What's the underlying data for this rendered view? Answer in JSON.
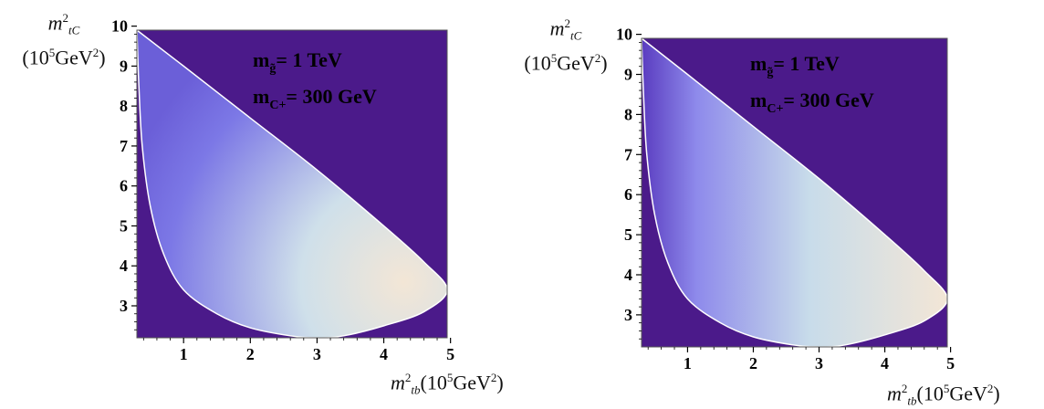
{
  "chart_data": [
    {
      "type": "density",
      "ylabel_line1": "m",
      "ylabel_sup": "2",
      "ylabel_sub": "tC",
      "ylabel_line2": "(10",
      "ylabel_line2_sup": "5",
      "ylabel_line2_end": "GeV",
      "ylabel_line2_end_sup": "2",
      "ylabel_line2_close": ")",
      "xlabel": "m",
      "xlabel_sup": "2",
      "xlabel_sub": "tb",
      "xlabel_rest": "(10",
      "xlabel_rest_sup": "5",
      "xlabel_rest_end": "GeV",
      "xlabel_rest_end_sup": "2",
      "xlabel_close": ")",
      "xlim": [
        0.3,
        4.95
      ],
      "ylim": [
        2.2,
        9.9
      ],
      "x_ticks": [
        1,
        2,
        3,
        4,
        5
      ],
      "y_ticks": [
        3,
        4,
        5,
        6,
        7,
        8,
        9,
        10
      ],
      "annotation_line1": "m",
      "annotation_line1_sub": "g̃",
      "annotation_line1_rest": "= 1 TeV",
      "annotation_line2": "m",
      "annotation_line2_sub": "C+",
      "annotation_line2_rest": "= 300 GeV",
      "gradient": "radial",
      "colors": {
        "background": "#4B1A8A",
        "low": "#7C78E6",
        "mid": "#CFE0EA",
        "high": "#F3E6D6"
      },
      "boundary": {
        "upper": [
          [
            0.3,
            9.9
          ],
          [
            1.0,
            9.0
          ],
          [
            2.0,
            7.7
          ],
          [
            3.0,
            6.4
          ],
          [
            4.0,
            5.0
          ],
          [
            4.6,
            4.1
          ],
          [
            4.95,
            3.4
          ]
        ],
        "lower": [
          [
            4.95,
            3.4
          ],
          [
            4.6,
            2.85
          ],
          [
            4.0,
            2.5
          ],
          [
            3.4,
            2.25
          ],
          [
            3.0,
            2.2
          ],
          [
            2.6,
            2.25
          ],
          [
            2.0,
            2.45
          ],
          [
            1.5,
            2.8
          ],
          [
            1.0,
            3.4
          ],
          [
            0.7,
            4.3
          ],
          [
            0.5,
            5.5
          ],
          [
            0.38,
            7.0
          ],
          [
            0.33,
            8.5
          ],
          [
            0.3,
            9.9
          ]
        ]
      }
    },
    {
      "type": "density",
      "ylabel_line1": "m",
      "ylabel_sup": "2",
      "ylabel_sub": "tC",
      "ylabel_line2": "(10",
      "ylabel_line2_sup": "5",
      "ylabel_line2_end": "GeV",
      "ylabel_line2_end_sup": "2",
      "ylabel_line2_close": ")",
      "xlabel": "m",
      "xlabel_sup": "2",
      "xlabel_sub": "tb",
      "xlabel_rest": "(10",
      "xlabel_rest_sup": "5",
      "xlabel_rest_end": "GeV",
      "xlabel_rest_end_sup": "2",
      "xlabel_close": ")",
      "xlim": [
        0.3,
        4.95
      ],
      "ylim": [
        2.2,
        9.9
      ],
      "x_ticks": [
        1,
        2,
        3,
        4,
        5
      ],
      "y_ticks": [
        3,
        4,
        5,
        6,
        7,
        8,
        9,
        10
      ],
      "annotation_line1": "m",
      "annotation_line1_sub": "g̃",
      "annotation_line1_rest": "= 1 TeV",
      "annotation_line2": "m",
      "annotation_line2_sub": "C+",
      "annotation_line2_rest": "= 300 GeV",
      "gradient": "horizontal",
      "colors": {
        "background": "#4B1A8A",
        "low": "#5A3CC0",
        "mid": "#C8DCEA",
        "high": "#F3E6D6"
      },
      "boundary": {
        "upper": [
          [
            0.3,
            9.9
          ],
          [
            1.0,
            9.0
          ],
          [
            2.0,
            7.7
          ],
          [
            3.0,
            6.4
          ],
          [
            4.0,
            5.0
          ],
          [
            4.6,
            4.1
          ],
          [
            4.95,
            3.4
          ]
        ],
        "lower": [
          [
            4.95,
            3.4
          ],
          [
            4.6,
            2.85
          ],
          [
            4.0,
            2.5
          ],
          [
            3.4,
            2.25
          ],
          [
            3.0,
            2.2
          ],
          [
            2.6,
            2.25
          ],
          [
            2.0,
            2.45
          ],
          [
            1.5,
            2.8
          ],
          [
            1.0,
            3.4
          ],
          [
            0.7,
            4.3
          ],
          [
            0.5,
            5.5
          ],
          [
            0.38,
            7.0
          ],
          [
            0.33,
            8.5
          ],
          [
            0.3,
            9.9
          ]
        ]
      }
    }
  ]
}
